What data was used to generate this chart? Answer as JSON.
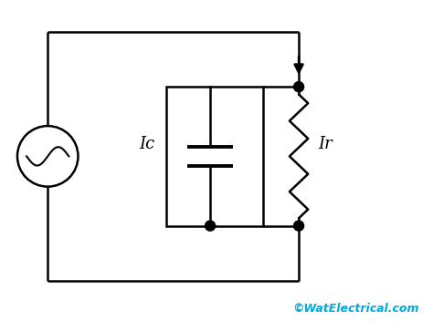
{
  "bg_color": "#ffffff",
  "line_color": "#000000",
  "text_color_cyan": "#00aadd",
  "watermark": "©WatElectrical.com",
  "label_ic": "Ic",
  "label_ir": "Ir",
  "lw": 1.8
}
